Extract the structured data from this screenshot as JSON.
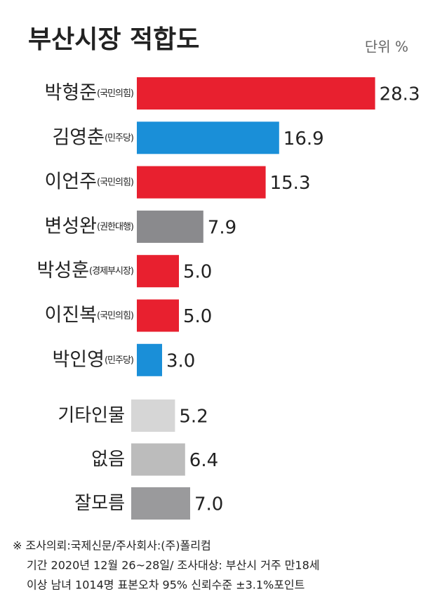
{
  "chart_data": [
    {
      "type": "bar",
      "title": "부산시장 적합도",
      "unit_label": "단위 %",
      "categories": [
        "박형준",
        "김영춘",
        "이언주",
        "변성완",
        "박성훈",
        "이진복",
        "박인영"
      ],
      "parties": [
        "(국민의힘)",
        "(민주당)",
        "(국민의힘)",
        "(권한대행)",
        "(경제부시장)",
        "(국민의힘)",
        "(민주당)"
      ],
      "values": [
        28.3,
        16.9,
        15.3,
        7.9,
        5.0,
        5.0,
        3.0
      ],
      "value_labels": [
        "28.3",
        "16.9",
        "15.3",
        "7.9",
        "5.0",
        "5.0",
        "3.0"
      ],
      "colors": [
        "#e8202f",
        "#1a8fd8",
        "#e8202f",
        "#8a8a8d",
        "#e8202f",
        "#e8202f",
        "#1a8fd8"
      ]
    },
    {
      "type": "bar",
      "categories": [
        "기타인물",
        "없음",
        "잘모름"
      ],
      "values": [
        5.2,
        6.4,
        7.0
      ],
      "value_labels": [
        "5.2",
        "6.4",
        "7.0"
      ],
      "colors": [
        "#d6d6d6",
        "#bcbcbc",
        "#9a9a9c"
      ]
    }
  ],
  "footnote": [
    "※ 조사의뢰:국제신문/주사회사:(주)폴리컴",
    "기간 2020년 12월 26~28일/ 조사대상: 부산시 거주 만18세",
    "이상 남녀 1014명 표본오차 95% 신뢰수준 ±3.1%포인트"
  ]
}
